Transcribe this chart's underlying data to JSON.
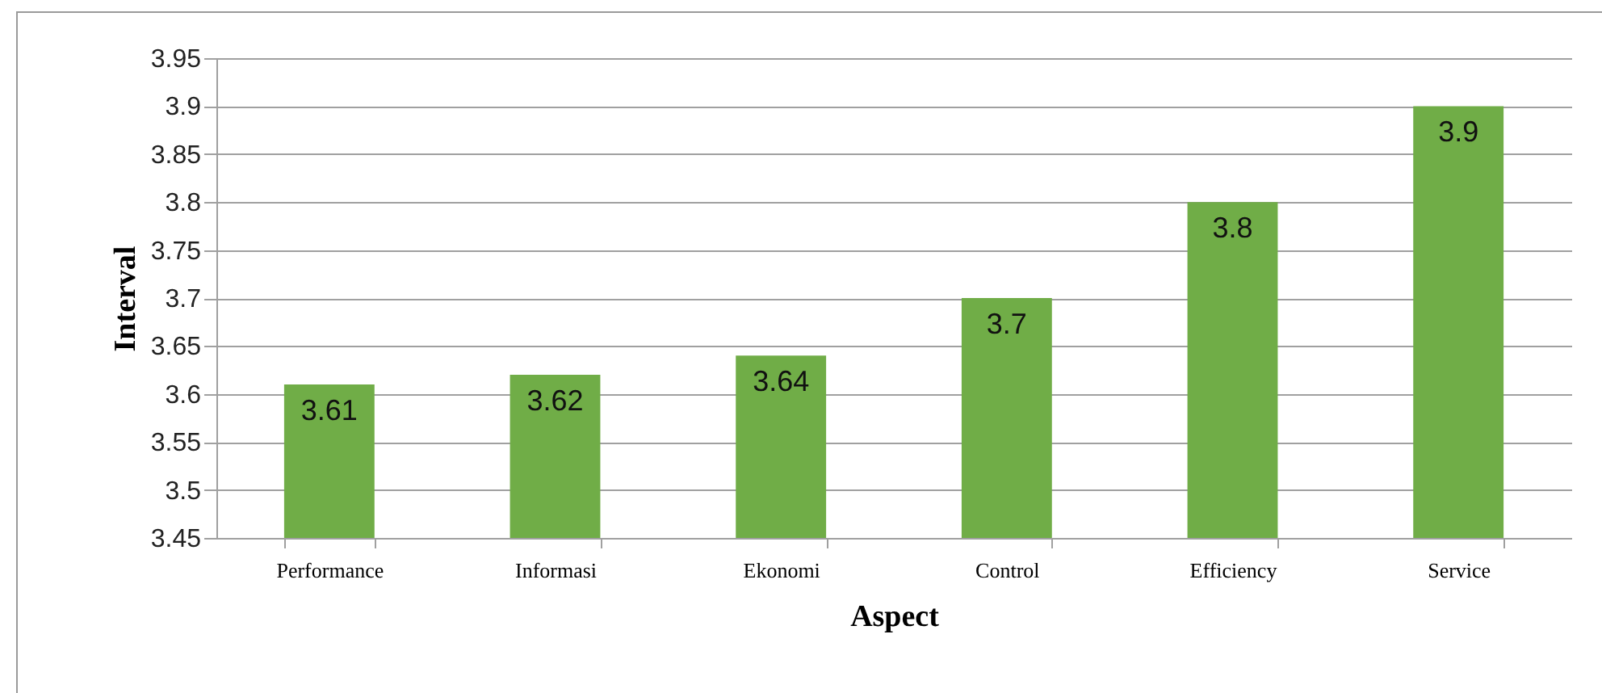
{
  "chart_data": {
    "type": "bar",
    "xlabel": "Aspect",
    "ylabel": "Interval",
    "categories": [
      "Performance",
      "Informasi",
      "Ekonomi",
      "Control",
      "Efficiency",
      "Service"
    ],
    "values": [
      3.61,
      3.62,
      3.64,
      3.7,
      3.8,
      3.9
    ],
    "color": "#70ad47",
    "ylim": [
      3.45,
      3.95
    ],
    "yticks": [
      3.45,
      3.5,
      3.55,
      3.6,
      3.65,
      3.7,
      3.75,
      3.8,
      3.85,
      3.9,
      3.95
    ],
    "grid": "y",
    "data_labels": true
  }
}
